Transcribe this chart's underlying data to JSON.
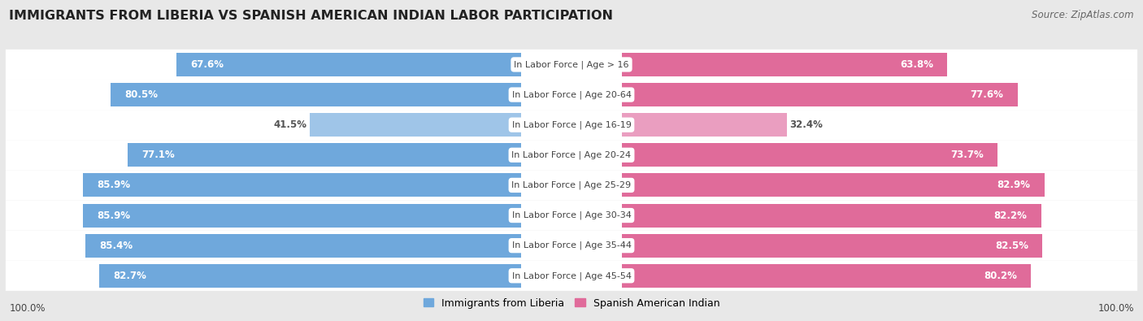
{
  "title": "IMMIGRANTS FROM LIBERIA VS SPANISH AMERICAN INDIAN LABOR PARTICIPATION",
  "source": "Source: ZipAtlas.com",
  "categories": [
    "In Labor Force | Age > 16",
    "In Labor Force | Age 20-64",
    "In Labor Force | Age 16-19",
    "In Labor Force | Age 20-24",
    "In Labor Force | Age 25-29",
    "In Labor Force | Age 30-34",
    "In Labor Force | Age 35-44",
    "In Labor Force | Age 45-54"
  ],
  "liberia_values": [
    67.6,
    80.5,
    41.5,
    77.1,
    85.9,
    85.9,
    85.4,
    82.7
  ],
  "spanish_values": [
    63.8,
    77.6,
    32.4,
    73.7,
    82.9,
    82.2,
    82.5,
    80.2
  ],
  "liberia_color_full": "#6fa8dc",
  "liberia_color_light": "#9fc5e8",
  "spanish_color_full": "#e06b9a",
  "spanish_color_light": "#ea9ec0",
  "bg_color": "#e8e8e8",
  "label_color_dark": "#555555",
  "label_color_white": "#ffffff",
  "max_val": 100.0,
  "legend_liberia": "Immigrants from Liberia",
  "legend_spanish": "Spanish American Indian",
  "bottom_label": "100.0%",
  "title_fontsize": 11.5,
  "label_fontsize": 8.5,
  "category_fontsize": 8.0
}
